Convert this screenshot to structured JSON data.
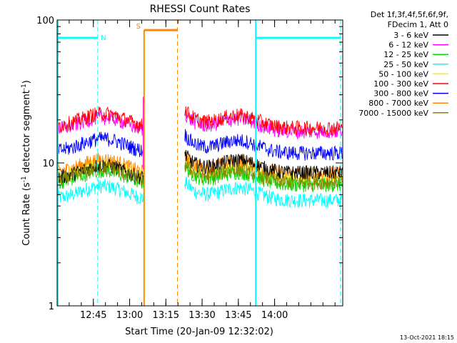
{
  "chart_data": {
    "type": "line",
    "title": "RHESSI Count Rates",
    "xlabel": "Start Time (20-Jan-09 12:32:02)",
    "ylabel_main": "Count Rate (s",
    "ylabel_sup": "-1",
    "ylabel_mid": " detector segment",
    "ylabel_sup2": "-1",
    "ylabel_end": ")",
    "yscale": "log",
    "ylim": [
      1,
      100
    ],
    "xlim_minutes": [
      12.5,
      14.47
    ],
    "y_ticks": [
      {
        "value": 1,
        "label": "1"
      },
      {
        "value": 10,
        "label": "10"
      },
      {
        "value": 100,
        "label": "100"
      }
    ],
    "x_ticks": [
      {
        "value": 12.75,
        "label": "12:45"
      },
      {
        "value": 13.0,
        "label": "13:00"
      },
      {
        "value": 13.25,
        "label": "13:15"
      },
      {
        "value": 13.5,
        "label": "13:30"
      },
      {
        "value": 13.75,
        "label": "13:45"
      },
      {
        "value": 14.0,
        "label": "14:00"
      }
    ],
    "legend": {
      "header": [
        "Det 1f,3f,4f,5f,6f,9f,",
        "FDecim 1, Att 0"
      ],
      "placement": "right"
    },
    "series": [
      {
        "name": "3 - 6 keV",
        "color": "#000000",
        "level": 7.8
      },
      {
        "name": "6 - 12 keV",
        "color": "#ff00ff",
        "level": 17.0
      },
      {
        "name": "12 - 25 keV",
        "color": "#00dd00",
        "level": 7.2
      },
      {
        "name": "25 - 50 keV",
        "color": "#00ffff",
        "level": 5.6
      },
      {
        "name": "50 - 100 keV",
        "color": "#ffee00",
        "level": 8.0
      },
      {
        "name": "100 - 300 keV",
        "color": "#ff0000",
        "level": 18.0
      },
      {
        "name": "300 - 800 keV",
        "color": "#0000ff",
        "level": 12.0
      },
      {
        "name": "800 - 7000 keV",
        "color": "#ff8800",
        "level": 8.6
      },
      {
        "name": "7000 - 15000 keV",
        "color": "#888800",
        "level": 7.5
      }
    ],
    "annotations": [
      {
        "label": "N",
        "color": "#00ffff",
        "x_start": 12.52,
        "x_end": 12.78
      },
      {
        "label": "S",
        "color": "#ff8800",
        "x_start": 13.1,
        "x_end": 13.33
      }
    ],
    "footer": "13-Oct-2021 18:15"
  }
}
